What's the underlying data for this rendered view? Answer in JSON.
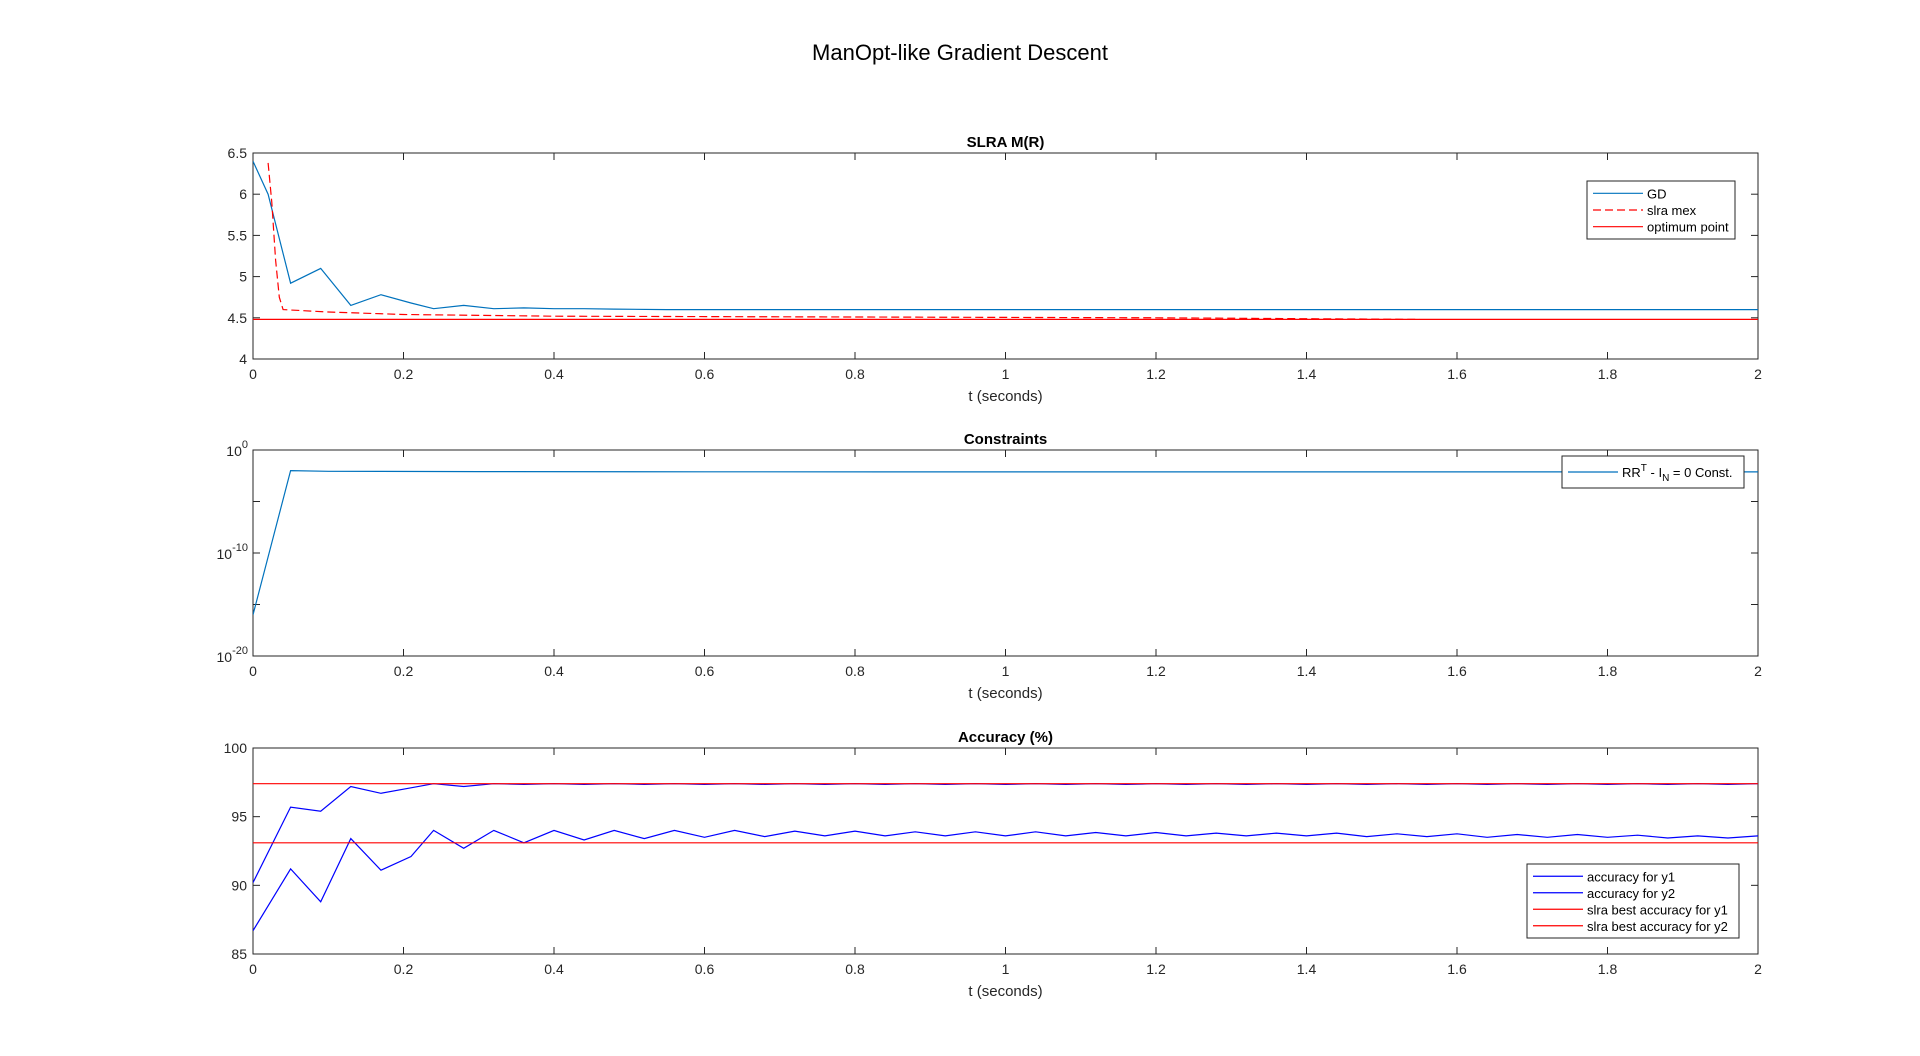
{
  "figure": {
    "title": "ManOpt-like Gradient Descent"
  },
  "chart_data": [
    {
      "type": "line",
      "title": "SLRA M(R)",
      "xlabel": "t (seconds)",
      "ylabel": "",
      "xlim": [
        0,
        2
      ],
      "ylim": [
        4,
        6.5
      ],
      "xticks": [
        "0",
        "0.2",
        "0.4",
        "0.6",
        "0.8",
        "1",
        "1.2",
        "1.4",
        "1.6",
        "1.8",
        "2"
      ],
      "yticks": [
        "4",
        "4.5",
        "5",
        "5.5",
        "6",
        "6.5"
      ],
      "legend": "top-right",
      "series": [
        {
          "name": "GD",
          "color": "#0072BD",
          "style": "solid",
          "x": [
            0,
            0.02,
            0.05,
            0.09,
            0.13,
            0.17,
            0.21,
            0.24,
            0.28,
            0.32,
            0.36,
            0.4,
            0.44,
            0.48,
            0.55,
            0.7,
            1.0,
            1.5,
            2.0
          ],
          "y": [
            6.4,
            6.0,
            4.92,
            5.1,
            4.65,
            4.78,
            4.68,
            4.61,
            4.65,
            4.61,
            4.62,
            4.61,
            4.61,
            4.605,
            4.6,
            4.6,
            4.6,
            4.6,
            4.6
          ]
        },
        {
          "name": "slra mex",
          "color": "#FF0000",
          "style": "dashed",
          "x": [
            0.02,
            0.025,
            0.03,
            0.035,
            0.04,
            0.1,
            0.2,
            0.4,
            0.8,
            1.2,
            1.55
          ],
          "y": [
            6.38,
            5.9,
            5.2,
            4.75,
            4.6,
            4.57,
            4.54,
            4.52,
            4.51,
            4.5,
            4.48
          ]
        },
        {
          "name": "optimum point",
          "color": "#FF0000",
          "style": "solid",
          "x": [
            0,
            2
          ],
          "y": [
            4.48,
            4.48
          ]
        }
      ]
    },
    {
      "type": "line",
      "title": "Constraints",
      "xlabel": "t (seconds)",
      "ylabel": "",
      "yscale": "log",
      "xlim": [
        0,
        2
      ],
      "ylim": [
        1e-20,
        1
      ],
      "xticks": [
        "0",
        "0.2",
        "0.4",
        "0.6",
        "0.8",
        "1",
        "1.2",
        "1.4",
        "1.6",
        "1.8",
        "2"
      ],
      "yticks": [
        {
          "base": "10",
          "exp": "0"
        },
        {
          "base": "10",
          "exp": "-10"
        },
        {
          "base": "10",
          "exp": "-20"
        }
      ],
      "legend": "top-right",
      "series": [
        {
          "name": {
            "pre": "RR",
            "sup": "T",
            "mid": " - I",
            "sub": "N",
            "post": " = 0 Const."
          },
          "color": "#0072BD",
          "style": "solid",
          "x": [
            0,
            0.05,
            0.1,
            0.3,
            0.6,
            1.0,
            1.5,
            2.0
          ],
          "y": [
            1e-16,
            0.01,
            0.0085,
            0.008,
            0.0077,
            0.0075,
            0.0074,
            0.0074
          ]
        }
      ]
    },
    {
      "type": "line",
      "title": "Accuracy (%)",
      "xlabel": "t (seconds)",
      "ylabel": "",
      "xlim": [
        0,
        2
      ],
      "ylim": [
        85,
        100
      ],
      "xticks": [
        "0",
        "0.2",
        "0.4",
        "0.6",
        "0.8",
        "1",
        "1.2",
        "1.4",
        "1.6",
        "1.8",
        "2"
      ],
      "yticks": [
        "85",
        "90",
        "95",
        "100"
      ],
      "legend": "bottom-right",
      "series": [
        {
          "name": "accuracy for y1",
          "color": "#0000FF",
          "style": "solid",
          "x": [
            0,
            0.05,
            0.09,
            0.13,
            0.17,
            0.21,
            0.24,
            0.28,
            0.32,
            0.36,
            0.4,
            0.44,
            0.48,
            0.52,
            0.56,
            0.6,
            0.64,
            0.68,
            0.72,
            0.76,
            0.8,
            0.84,
            0.88,
            0.92,
            0.96,
            1.0,
            1.04,
            1.08,
            1.12,
            1.16,
            1.2,
            1.24,
            1.28,
            1.32,
            1.36,
            1.4,
            1.44,
            1.48,
            1.52,
            1.56,
            1.6,
            1.64,
            1.68,
            1.72,
            1.76,
            1.8,
            1.84,
            1.88,
            1.92,
            1.96,
            2.0
          ],
          "y": [
            90.2,
            95.7,
            95.4,
            97.2,
            96.7,
            97.1,
            97.4,
            97.2,
            97.4,
            97.35,
            97.4,
            97.35,
            97.4,
            97.35,
            97.4,
            97.35,
            97.4,
            97.35,
            97.4,
            97.35,
            97.4,
            97.35,
            97.4,
            97.35,
            97.4,
            97.35,
            97.4,
            97.35,
            97.4,
            97.35,
            97.4,
            97.35,
            97.4,
            97.35,
            97.4,
            97.35,
            97.4,
            97.35,
            97.4,
            97.35,
            97.4,
            97.35,
            97.4,
            97.35,
            97.4,
            97.35,
            97.4,
            97.35,
            97.4,
            97.35,
            97.4
          ]
        },
        {
          "name": "accuracy for y2",
          "color": "#0000FF",
          "style": "solid",
          "x": [
            0,
            0.05,
            0.09,
            0.13,
            0.17,
            0.21,
            0.24,
            0.28,
            0.32,
            0.36,
            0.4,
            0.44,
            0.48,
            0.52,
            0.56,
            0.6,
            0.64,
            0.68,
            0.72,
            0.76,
            0.8,
            0.84,
            0.88,
            0.92,
            0.96,
            1.0,
            1.04,
            1.08,
            1.12,
            1.16,
            1.2,
            1.24,
            1.28,
            1.32,
            1.36,
            1.4,
            1.44,
            1.48,
            1.52,
            1.56,
            1.6,
            1.64,
            1.68,
            1.72,
            1.76,
            1.8,
            1.84,
            1.88,
            1.92,
            1.96,
            2.0
          ],
          "y": [
            86.7,
            91.2,
            88.8,
            93.4,
            91.1,
            92.1,
            94.0,
            92.7,
            94.0,
            93.1,
            94.0,
            93.3,
            94.0,
            93.4,
            94.0,
            93.5,
            94.0,
            93.55,
            93.95,
            93.6,
            93.95,
            93.6,
            93.9,
            93.6,
            93.9,
            93.6,
            93.9,
            93.6,
            93.85,
            93.6,
            93.85,
            93.6,
            93.8,
            93.6,
            93.8,
            93.6,
            93.8,
            93.55,
            93.75,
            93.55,
            93.75,
            93.5,
            93.7,
            93.5,
            93.7,
            93.5,
            93.65,
            93.45,
            93.6,
            93.45,
            93.6
          ]
        },
        {
          "name": "slra best accuracy for y1",
          "color": "#FF0000",
          "style": "solid",
          "x": [
            0,
            2
          ],
          "y": [
            97.4,
            97.4
          ]
        },
        {
          "name": "slra best accuracy for y2",
          "color": "#FF0000",
          "style": "solid",
          "x": [
            0,
            2
          ],
          "y": [
            93.1,
            93.1
          ]
        }
      ]
    }
  ]
}
